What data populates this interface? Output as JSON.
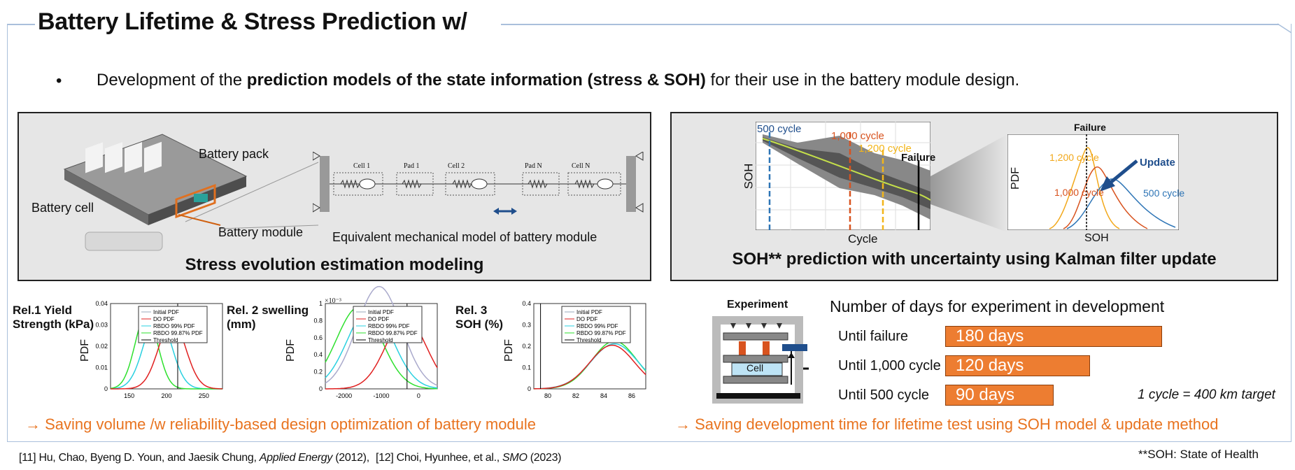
{
  "title": "Battery Lifetime & Stress Prediction w/",
  "bullet": {
    "marker": "•",
    "prefix": "Development of the ",
    "bold": "prediction models of the state information (stress & SOH)",
    "suffix": " for their use in the battery module design."
  },
  "left_panel": {
    "battery_pack": "Battery pack",
    "battery_cell": "Battery cell",
    "battery_module": "Battery module",
    "model_caption": "Equivalent mechanical model of battery module",
    "caption": "Stress evolution estimation modeling",
    "model_labels": [
      "Cell 1",
      "Pad 1",
      "Cell 2",
      "Pad N",
      "Cell N"
    ]
  },
  "right_panel": {
    "caption": "SOH** prediction with uncertainty using Kalman filter update",
    "soh_plot": {
      "ylabel": "SOH",
      "xlabel": "Cycle",
      "markers": [
        "500 cycle",
        "1,000 cycle",
        "1,200 cycle"
      ],
      "failure": "Failure"
    },
    "pdf_plot": {
      "ylabel": "PDF",
      "xlabel": "SOH",
      "failure": "Failure",
      "update": "Update",
      "labels": [
        "1,200 cycle",
        "1,000 cycle",
        "500 cycle"
      ]
    }
  },
  "rel_plots": [
    {
      "label_line1": "Rel.1 Yield",
      "label_line2": "Strength (kPa)",
      "ylabel": "PDF",
      "yticks": [
        "0.04",
        "0.03",
        "0.02",
        "0.01",
        "0"
      ],
      "xticks": [
        "150",
        "200",
        "250"
      ],
      "legend": [
        "Initial PDF",
        "DO PDF",
        "RBDO 99% PDF",
        "RBDO 99.87% PDF",
        "Threshold"
      ]
    },
    {
      "label_line1": "Rel. 2 swelling",
      "label_line2": "(mm)",
      "ylabel": "PDF",
      "exp": "×10⁻³",
      "yticks": [
        "1",
        "0.8",
        "0.6",
        "0.4",
        "0.2",
        "0"
      ],
      "xticks": [
        "-2000",
        "-1000",
        "0"
      ],
      "legend": [
        "Initial PDF",
        "DO PDF",
        "RBDO 99% PDF",
        "RBDO 99.87% PDF",
        "Threshold"
      ]
    },
    {
      "label_line1": "Rel. 3",
      "label_line2": "SOH (%)",
      "ylabel": "PDF",
      "yticks": [
        "0.4",
        "0.3",
        "0.2",
        "0.1",
        "0"
      ],
      "xticks": [
        "80",
        "82",
        "84",
        "86"
      ],
      "legend": [
        "Initial PDF",
        "DO PDF",
        "RBDO 99% PDF",
        "RBDO 99.87% PDF",
        "Threshold"
      ]
    }
  ],
  "experiment": {
    "label": "Experiment",
    "cell": "Cell",
    "header": "Number of days for experiment in development",
    "rows": [
      {
        "label": "Until failure",
        "days": "180 days",
        "value": 180
      },
      {
        "label": "Until 1,000 cycle",
        "days": "120 days",
        "value": 120
      },
      {
        "label": "Until 500 cycle",
        "days": "90 days",
        "value": 90
      }
    ],
    "note": "1 cycle = 400 km target"
  },
  "arrows": {
    "left": "→ Saving volume /w reliability-based design optimization of battery module",
    "right": "→ Saving development time for lifetime test using SOH model & update method"
  },
  "footnotes": {
    "ref11_pre": "[11] Hu, Chao, Byeng D. Youn, and Jaesik Chung, ",
    "ref11_journal": "Applied Energy",
    "ref11_post": " (2012),",
    "ref12_pre": "[12] Choi, Hyunhee, et al., ",
    "ref12_journal": "SMO",
    "ref12_post": " (2023)",
    "soh_def": "**SOH: State of Health"
  },
  "colors": {
    "accent": "#e8731f",
    "bar": "#ed7d31",
    "frame": "#a9bfdb",
    "navy": "#1f4e8c"
  }
}
